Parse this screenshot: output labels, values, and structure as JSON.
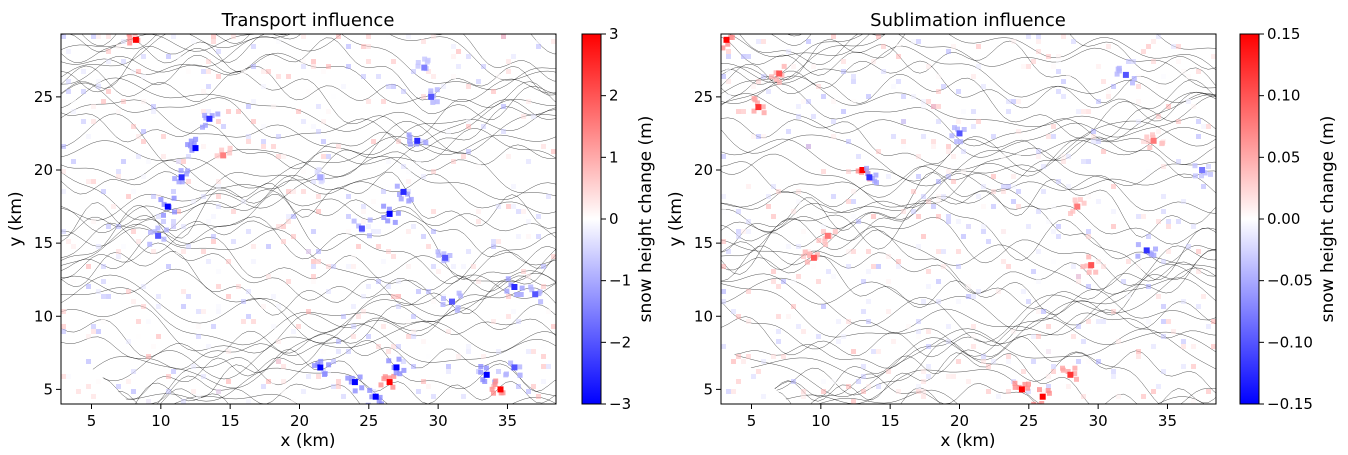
{
  "colors": {
    "negative": "#0000ff",
    "neutral": "#ffffff",
    "positive": "#ff0000",
    "contour": "#000000"
  },
  "chart_data": [
    {
      "type": "heatmap",
      "title": "Transport influence",
      "xlabel": "x (km)",
      "ylabel": "y (km)",
      "xlim": [
        2.8,
        38.5
      ],
      "ylim": [
        4.0,
        29.3
      ],
      "xticks": [
        5,
        10,
        15,
        20,
        25,
        30,
        35
      ],
      "yticks": [
        5,
        10,
        15,
        20,
        25
      ],
      "colorbar": {
        "label": "snow height change (m)",
        "cmap": "bwr",
        "vmin": -3,
        "vmax": 3,
        "ticks": [
          -3,
          -2,
          -1,
          0,
          1,
          2,
          3
        ],
        "tick_labels": [
          "−3",
          "−2",
          "−1",
          "0",
          "1",
          "2",
          "3"
        ]
      },
      "overlay": "topographic contours",
      "hotspots": [
        {
          "x": 10.5,
          "y": 17.5,
          "v": -3
        },
        {
          "x": 11.5,
          "y": 19.5,
          "v": -2.5
        },
        {
          "x": 12.5,
          "y": 21.5,
          "v": -3
        },
        {
          "x": 13.5,
          "y": 23.5,
          "v": -2.5
        },
        {
          "x": 14.5,
          "y": 21.0,
          "v": 1.5
        },
        {
          "x": 9.8,
          "y": 15.5,
          "v": -2
        },
        {
          "x": 8.2,
          "y": 28.9,
          "v": 3
        },
        {
          "x": 21.5,
          "y": 19.5,
          "v": -1
        },
        {
          "x": 24.5,
          "y": 16.0,
          "v": -2
        },
        {
          "x": 26.5,
          "y": 17.0,
          "v": -3
        },
        {
          "x": 27.5,
          "y": 18.5,
          "v": -2.5
        },
        {
          "x": 28.5,
          "y": 22.0,
          "v": -2.5
        },
        {
          "x": 29.5,
          "y": 25.0,
          "v": -2
        },
        {
          "x": 29.0,
          "y": 27.0,
          "v": -1.5
        },
        {
          "x": 30.5,
          "y": 14.0,
          "v": -2
        },
        {
          "x": 31.0,
          "y": 11.0,
          "v": -2
        },
        {
          "x": 35.5,
          "y": 12.0,
          "v": -2.5
        },
        {
          "x": 37.0,
          "y": 11.5,
          "v": -2
        },
        {
          "x": 21.5,
          "y": 6.5,
          "v": -3
        },
        {
          "x": 24.0,
          "y": 5.5,
          "v": -3
        },
        {
          "x": 25.5,
          "y": 4.5,
          "v": -3
        },
        {
          "x": 26.5,
          "y": 5.5,
          "v": 3
        },
        {
          "x": 27.0,
          "y": 6.5,
          "v": -3
        },
        {
          "x": 33.5,
          "y": 6.0,
          "v": -3
        },
        {
          "x": 34.5,
          "y": 5.0,
          "v": 3
        },
        {
          "x": 35.5,
          "y": 6.5,
          "v": -2
        }
      ]
    },
    {
      "type": "heatmap",
      "title": "Sublimation influence",
      "xlabel": "x (km)",
      "ylabel": "y (km)",
      "xlim": [
        2.8,
        38.5
      ],
      "ylim": [
        4.0,
        29.3
      ],
      "xticks": [
        5,
        10,
        15,
        20,
        25,
        30,
        35
      ],
      "yticks": [
        5,
        10,
        15,
        20,
        25
      ],
      "colorbar": {
        "label": "snow height change (m)",
        "cmap": "bwr",
        "vmin": -0.15,
        "vmax": 0.15,
        "ticks": [
          -0.15,
          -0.1,
          -0.05,
          0,
          0.05,
          0.1,
          0.15
        ],
        "tick_labels": [
          "−0.15",
          "−0.10",
          "−0.05",
          "0.00",
          "0.05",
          "0.10",
          "0.15"
        ]
      },
      "overlay": "topographic contours",
      "hotspots": [
        {
          "x": 3.2,
          "y": 28.9,
          "v": 0.15
        },
        {
          "x": 5.5,
          "y": 24.3,
          "v": 0.12
        },
        {
          "x": 7.0,
          "y": 26.6,
          "v": 0.1
        },
        {
          "x": 13.0,
          "y": 20.0,
          "v": 0.15
        },
        {
          "x": 13.5,
          "y": 19.5,
          "v": -0.12
        },
        {
          "x": 9.5,
          "y": 14.0,
          "v": 0.1
        },
        {
          "x": 10.5,
          "y": 15.5,
          "v": 0.08
        },
        {
          "x": 20.0,
          "y": 22.5,
          "v": -0.1
        },
        {
          "x": 24.5,
          "y": 5.0,
          "v": 0.15
        },
        {
          "x": 26.0,
          "y": 4.5,
          "v": 0.15
        },
        {
          "x": 28.0,
          "y": 6.0,
          "v": 0.12
        },
        {
          "x": 28.5,
          "y": 17.5,
          "v": 0.08
        },
        {
          "x": 29.5,
          "y": 13.5,
          "v": 0.1
        },
        {
          "x": 32.0,
          "y": 26.5,
          "v": -0.1
        },
        {
          "x": 33.5,
          "y": 14.5,
          "v": -0.12
        },
        {
          "x": 34.0,
          "y": 22.0,
          "v": 0.08
        },
        {
          "x": 37.5,
          "y": 20.0,
          "v": -0.08
        }
      ]
    }
  ]
}
